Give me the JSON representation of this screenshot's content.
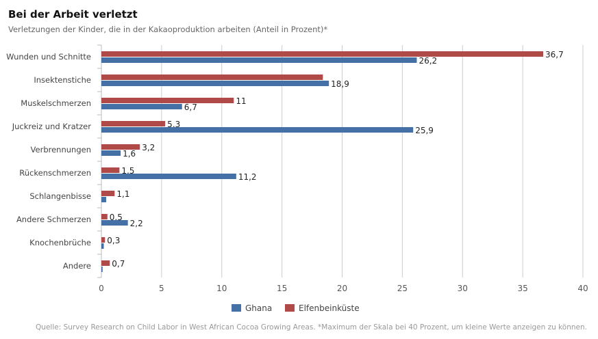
{
  "title": "Bei der Arbeit verletzt",
  "subtitle": "Verletzungen der Kinder, die in der Kakaoproduktion arbeiten (Anteil in Prozent)*",
  "source": "Quelle: Survey Research on Child Labor in West African Cocoa Growing Areas. *Maximum der Skala bei 40 Prozent, um kleine Werte anzeigen zu können.",
  "chart_data": {
    "type": "bar",
    "orientation": "horizontal",
    "categories": [
      "Wunden und Schnitte",
      "Insektenstiche",
      "Muskelschmerzen",
      "Juckreiz und Kratzer",
      "Verbrennungen",
      "Rückenschmerzen",
      "Schlangenbisse",
      "Andere Schmerzen",
      "Knochenbrüche",
      "Andere"
    ],
    "series": [
      {
        "name": "Elfenbeinküste",
        "color": "#b04a48",
        "values": [
          36.7,
          18.4,
          11,
          5.3,
          3.2,
          1.5,
          1.1,
          0.5,
          0.3,
          0.7
        ],
        "labels": [
          "36,7",
          "",
          "11",
          "5,3",
          "3,2",
          "1,5",
          "1,1",
          "0,5",
          "0,3",
          "0,7"
        ]
      },
      {
        "name": "Ghana",
        "color": "#4470a6",
        "values": [
          26.2,
          18.9,
          6.7,
          25.9,
          1.6,
          11.2,
          0.4,
          2.2,
          0.2,
          0.1
        ],
        "labels": [
          "26,2",
          "18,9",
          "6,7",
          "25,9",
          "1,6",
          "11,2",
          "",
          "2,2",
          "",
          ""
        ]
      }
    ],
    "xlim": [
      0,
      40
    ],
    "xticks": [
      0,
      5,
      10,
      15,
      20,
      25,
      30,
      35,
      40
    ],
    "grid": true,
    "legend": {
      "position": "bottom",
      "order": [
        "Ghana",
        "Elfenbeinküste"
      ]
    }
  }
}
